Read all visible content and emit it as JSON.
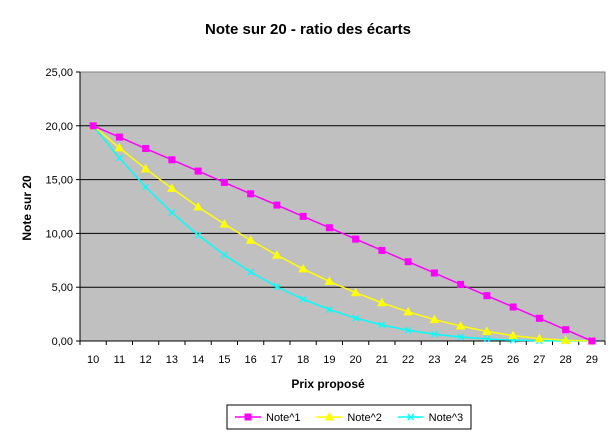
{
  "chart_data": {
    "type": "line",
    "title": "Note sur 20 - ratio des écarts",
    "xlabel": "Prix proposé",
    "ylabel": "Note sur 20",
    "x": [
      10,
      11,
      12,
      13,
      14,
      15,
      16,
      17,
      18,
      19,
      20,
      21,
      22,
      23,
      24,
      25,
      26,
      27,
      28,
      29
    ],
    "y_ticks": [
      "0,00",
      "5,00",
      "10,00",
      "15,00",
      "20,00",
      "25,00"
    ],
    "ylim": [
      0,
      25
    ],
    "grid": true,
    "legend_position": "bottom",
    "plot_background": "#c0c0c0",
    "series": [
      {
        "name": "Note^1",
        "color": "#ff00ff",
        "marker": "square",
        "values": [
          20.0,
          18.95,
          17.89,
          16.84,
          15.79,
          14.74,
          13.68,
          12.63,
          11.58,
          10.53,
          9.47,
          8.42,
          7.37,
          6.32,
          5.26,
          4.21,
          3.16,
          2.11,
          1.05,
          0.0
        ]
      },
      {
        "name": "Note^2",
        "color": "#ffff00",
        "marker": "triangle",
        "values": [
          20.0,
          17.95,
          16.0,
          14.18,
          12.47,
          10.86,
          9.36,
          7.98,
          6.7,
          5.54,
          4.49,
          3.55,
          2.71,
          1.99,
          1.39,
          0.89,
          0.5,
          0.22,
          0.06,
          0.0
        ]
      },
      {
        "name": "Note^3",
        "color": "#00ffff",
        "marker": "x",
        "values": [
          20.0,
          17.01,
          14.31,
          11.94,
          9.84,
          8.0,
          6.41,
          5.04,
          3.88,
          2.92,
          2.13,
          1.49,
          1.0,
          0.63,
          0.37,
          0.19,
          0.08,
          0.02,
          0.0,
          0.0
        ]
      }
    ]
  }
}
